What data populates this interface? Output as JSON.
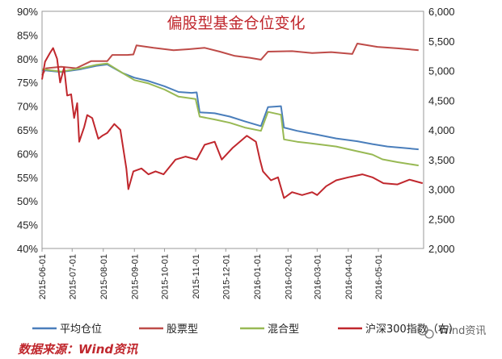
{
  "chart_data": {
    "type": "line",
    "title": "偏股型基金仓位变化",
    "source": "数据来源：Wind资讯",
    "watermark": "Wind资讯",
    "y_left": {
      "ticks": [
        "90%",
        "85%",
        "80%",
        "75%",
        "70%",
        "65%",
        "60%",
        "55%",
        "50%",
        "45%",
        "40%"
      ],
      "range": [
        40,
        90
      ],
      "unit": "%"
    },
    "y_right": {
      "ticks": [
        "6,000",
        "5,500",
        "5,000",
        "4,500",
        "4,000",
        "3,500",
        "3,000",
        "2,500",
        "2,000"
      ],
      "range": [
        2000,
        6000
      ]
    },
    "x_ticks": [
      "2015-06-01",
      "2015-07-01",
      "2015-08-01",
      "2015-09-01",
      "2015-10-01",
      "2015-11-01",
      "2015-12-01",
      "2016-01-01",
      "2016-02-01",
      "2016-03-01",
      "2016-04-01",
      "2016-05-01"
    ],
    "x_range": [
      "2015-06-01",
      "2016-06-15"
    ],
    "series": [
      {
        "name": "平均仓位",
        "axis": "left",
        "color": "#4a7ebb",
        "points": [
          [
            "2015-06-01",
            77.6
          ],
          [
            "2015-06-20",
            77.2
          ],
          [
            "2015-07-10",
            77.8
          ],
          [
            "2015-07-25",
            78.5
          ],
          [
            "2015-08-05",
            78.8
          ],
          [
            "2015-08-20",
            77.0
          ],
          [
            "2015-09-01",
            76.0
          ],
          [
            "2015-09-15",
            75.3
          ],
          [
            "2015-10-01",
            74.2
          ],
          [
            "2015-10-15",
            73.0
          ],
          [
            "2015-10-28",
            72.8
          ],
          [
            "2015-11-02",
            72.9
          ],
          [
            "2015-11-05",
            68.7
          ],
          [
            "2015-11-20",
            68.5
          ],
          [
            "2015-12-05",
            67.8
          ],
          [
            "2015-12-20",
            66.8
          ],
          [
            "2016-01-05",
            65.8
          ],
          [
            "2016-01-12",
            69.8
          ],
          [
            "2016-01-25",
            70.0
          ],
          [
            "2016-01-28",
            65.5
          ],
          [
            "2016-02-10",
            64.8
          ],
          [
            "2016-03-01",
            64.0
          ],
          [
            "2016-03-20",
            63.2
          ],
          [
            "2016-04-10",
            62.6
          ],
          [
            "2016-04-25",
            62.0
          ],
          [
            "2016-05-10",
            61.5
          ],
          [
            "2016-05-25",
            61.2
          ],
          [
            "2016-06-10",
            60.9
          ]
        ]
      },
      {
        "name": "股票型",
        "axis": "left",
        "color": "#be4b48",
        "points": [
          [
            "2015-06-01",
            76.5
          ],
          [
            "2015-06-05",
            78.0
          ],
          [
            "2015-06-20",
            78.3
          ],
          [
            "2015-07-05",
            78.0
          ],
          [
            "2015-07-20",
            79.5
          ],
          [
            "2015-08-05",
            79.5
          ],
          [
            "2015-08-10",
            80.8
          ],
          [
            "2015-08-25",
            80.8
          ],
          [
            "2015-08-31",
            80.9
          ],
          [
            "2015-09-03",
            82.8
          ],
          [
            "2015-09-20",
            82.3
          ],
          [
            "2015-10-10",
            81.8
          ],
          [
            "2015-10-25",
            82.0
          ],
          [
            "2015-11-10",
            82.3
          ],
          [
            "2015-11-25",
            81.5
          ],
          [
            "2015-12-10",
            80.6
          ],
          [
            "2015-12-25",
            80.2
          ],
          [
            "2016-01-05",
            79.8
          ],
          [
            "2016-01-12",
            81.5
          ],
          [
            "2016-02-05",
            81.6
          ],
          [
            "2016-02-25",
            81.2
          ],
          [
            "2016-03-15",
            81.4
          ],
          [
            "2016-04-05",
            81.0
          ],
          [
            "2016-04-10",
            83.2
          ],
          [
            "2016-04-30",
            82.5
          ],
          [
            "2016-05-20",
            82.2
          ],
          [
            "2016-06-10",
            81.8
          ]
        ]
      },
      {
        "name": "混合型",
        "axis": "left",
        "color": "#98b954",
        "points": [
          [
            "2015-06-01",
            77.8
          ],
          [
            "2015-06-20",
            77.3
          ],
          [
            "2015-07-10",
            78.0
          ],
          [
            "2015-07-25",
            78.7
          ],
          [
            "2015-08-05",
            79.0
          ],
          [
            "2015-08-20",
            77.0
          ],
          [
            "2015-09-01",
            75.5
          ],
          [
            "2015-09-15",
            74.8
          ],
          [
            "2015-10-01",
            73.5
          ],
          [
            "2015-10-15",
            72.0
          ],
          [
            "2015-11-01",
            71.5
          ],
          [
            "2015-11-05",
            67.8
          ],
          [
            "2015-11-20",
            67.2
          ],
          [
            "2015-12-05",
            66.5
          ],
          [
            "2015-12-20",
            65.5
          ],
          [
            "2016-01-05",
            64.8
          ],
          [
            "2016-01-12",
            68.8
          ],
          [
            "2016-01-25",
            68.2
          ],
          [
            "2016-01-28",
            63.0
          ],
          [
            "2016-02-10",
            62.5
          ],
          [
            "2016-03-01",
            62.0
          ],
          [
            "2016-03-20",
            61.5
          ],
          [
            "2016-04-10",
            60.5
          ],
          [
            "2016-04-25",
            59.8
          ],
          [
            "2016-05-05",
            58.8
          ],
          [
            "2016-05-20",
            58.2
          ],
          [
            "2016-06-10",
            57.5
          ]
        ]
      },
      {
        "name": "沪深300指数（右）",
        "axis": "right",
        "color": "#c0272d",
        "points": [
          [
            "2015-06-01",
            4850
          ],
          [
            "2015-06-04",
            5150
          ],
          [
            "2015-06-09",
            5300
          ],
          [
            "2015-06-12",
            5380
          ],
          [
            "2015-06-16",
            5200
          ],
          [
            "2015-06-19",
            4800
          ],
          [
            "2015-06-23",
            5050
          ],
          [
            "2015-06-26",
            4580
          ],
          [
            "2015-06-30",
            4600
          ],
          [
            "2015-07-03",
            4200
          ],
          [
            "2015-07-06",
            4450
          ],
          [
            "2015-07-08",
            3800
          ],
          [
            "2015-07-13",
            4050
          ],
          [
            "2015-07-16",
            4250
          ],
          [
            "2015-07-21",
            4200
          ],
          [
            "2015-07-27",
            3850
          ],
          [
            "2015-07-31",
            3900
          ],
          [
            "2015-08-05",
            3950
          ],
          [
            "2015-08-12",
            4100
          ],
          [
            "2015-08-18",
            4000
          ],
          [
            "2015-08-24",
            3350
          ],
          [
            "2015-08-26",
            3000
          ],
          [
            "2015-08-31",
            3300
          ],
          [
            "2015-09-08",
            3350
          ],
          [
            "2015-09-15",
            3250
          ],
          [
            "2015-09-22",
            3300
          ],
          [
            "2015-09-30",
            3250
          ],
          [
            "2015-10-12",
            3500
          ],
          [
            "2015-10-22",
            3550
          ],
          [
            "2015-11-02",
            3500
          ],
          [
            "2015-11-10",
            3750
          ],
          [
            "2015-11-20",
            3800
          ],
          [
            "2015-11-27",
            3500
          ],
          [
            "2015-12-08",
            3700
          ],
          [
            "2015-12-22",
            3900
          ],
          [
            "2015-12-31",
            3800
          ],
          [
            "2016-01-04",
            3500
          ],
          [
            "2016-01-07",
            3300
          ],
          [
            "2016-01-15",
            3150
          ],
          [
            "2016-01-22",
            3200
          ],
          [
            "2016-01-28",
            2850
          ],
          [
            "2016-02-05",
            2950
          ],
          [
            "2016-02-15",
            2900
          ],
          [
            "2016-02-25",
            2950
          ],
          [
            "2016-03-01",
            2900
          ],
          [
            "2016-03-10",
            3050
          ],
          [
            "2016-03-20",
            3150
          ],
          [
            "2016-04-01",
            3200
          ],
          [
            "2016-04-15",
            3250
          ],
          [
            "2016-04-25",
            3200
          ],
          [
            "2016-05-06",
            3100
          ],
          [
            "2016-05-20",
            3080
          ],
          [
            "2016-06-01",
            3160
          ],
          [
            "2016-06-14",
            3100
          ]
        ]
      }
    ],
    "legend_position": "bottom",
    "grid": false
  }
}
